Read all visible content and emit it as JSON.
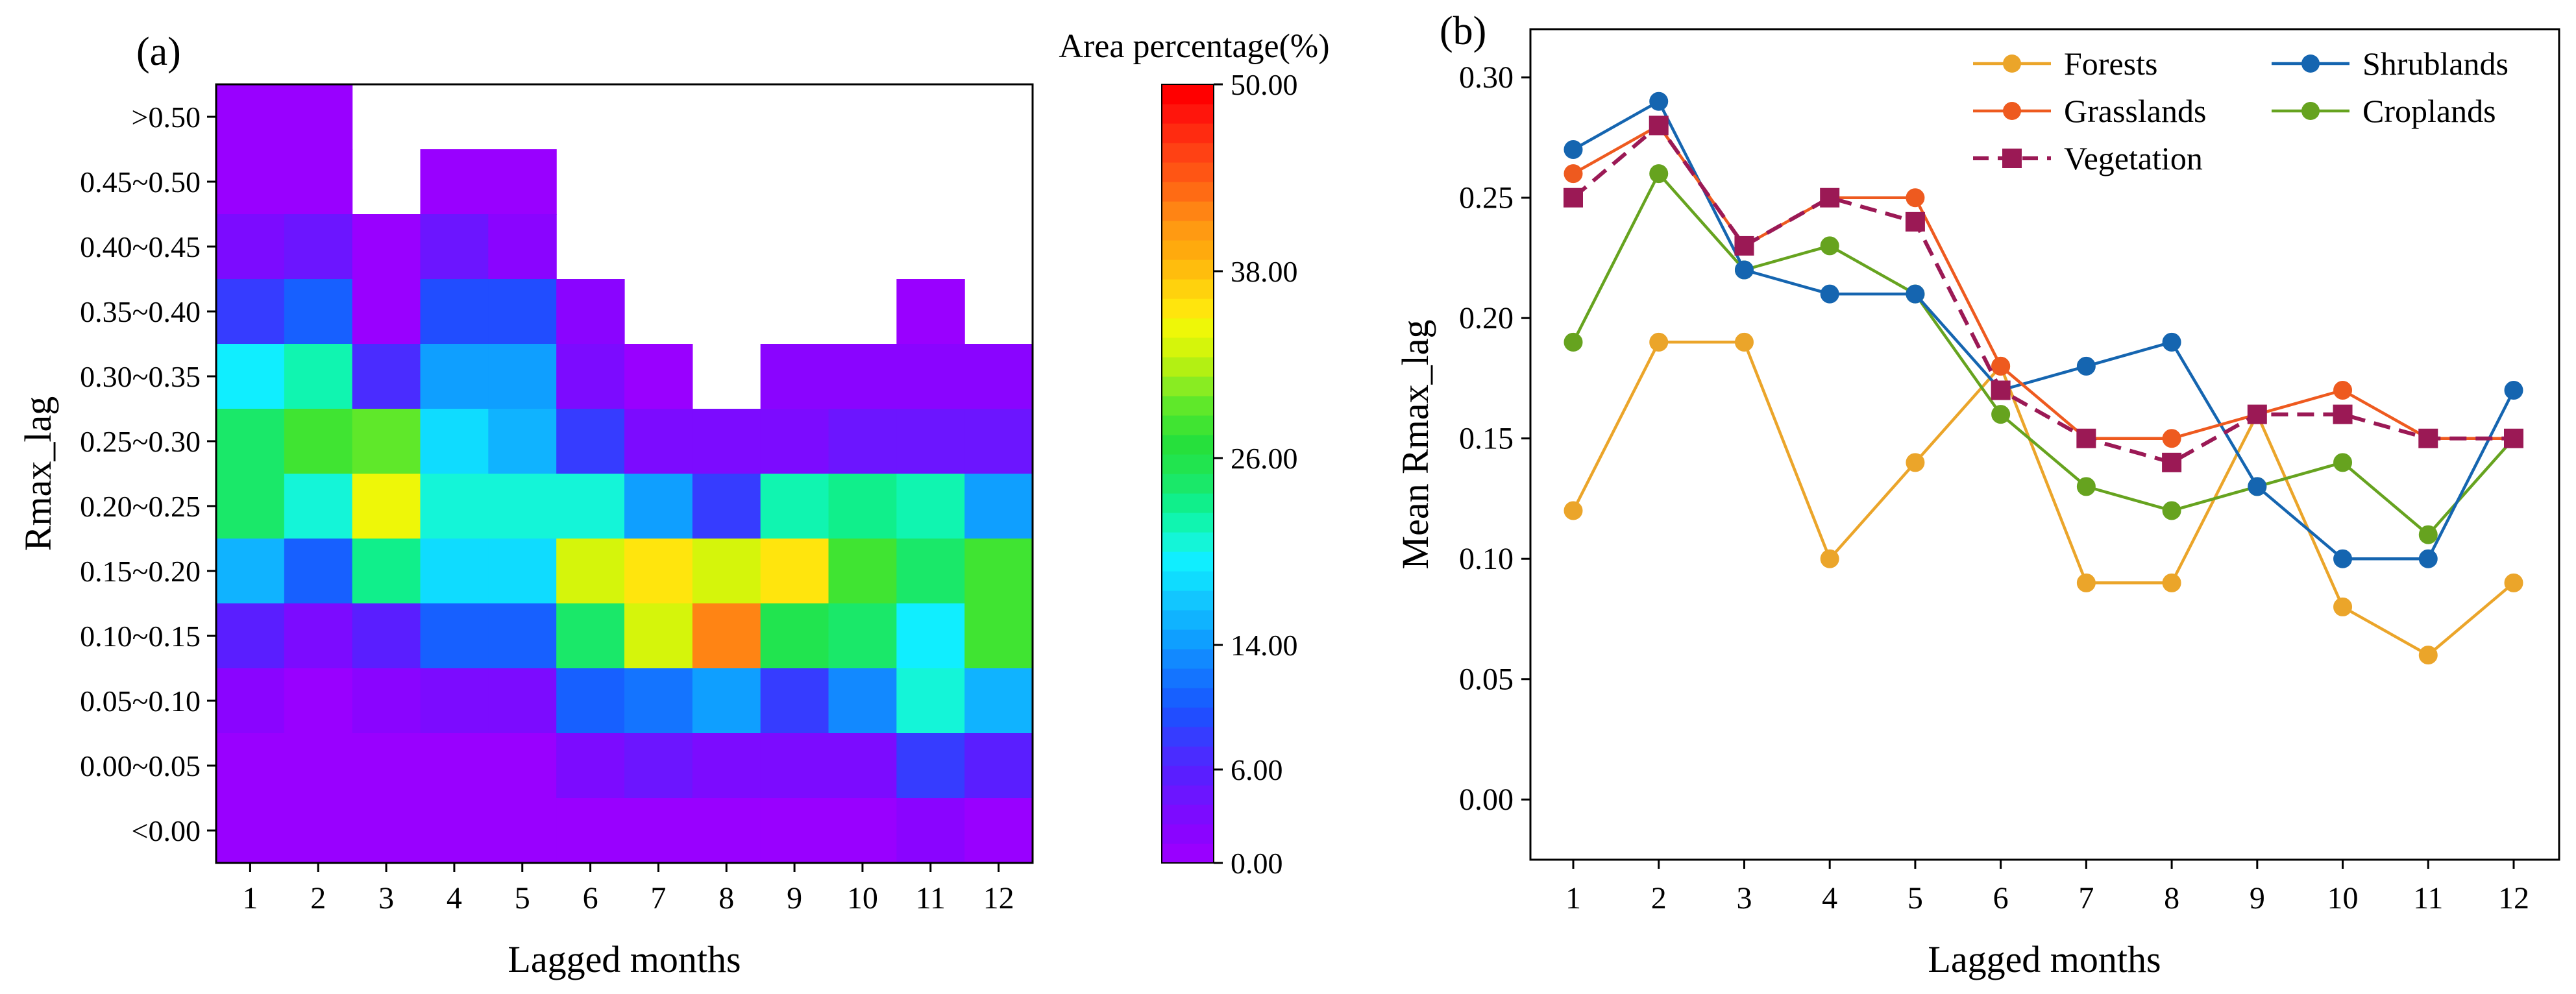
{
  "chart_data": [
    {
      "type": "heatmap",
      "panel_label": "(a)",
      "xlabel": "Lagged months",
      "ylabel": "Rmax_lag",
      "x_categories": [
        "1",
        "2",
        "3",
        "4",
        "5",
        "6",
        "7",
        "8",
        "9",
        "10",
        "11",
        "12"
      ],
      "y_categories": [
        ">0.50",
        "0.45~0.50",
        "0.40~0.45",
        "0.35~0.40",
        "0.30~0.35",
        "0.25~0.30",
        "0.20~0.25",
        "0.15~0.20",
        "0.10~0.15",
        "0.05~0.10",
        "0.00~0.05",
        "<0.00"
      ],
      "values_note": "Area percentage (%) per cell; null = no data (white). Rows follow y_categories order (top to bottom), columns follow x_categories.",
      "values": [
        [
          0.5,
          0.5,
          null,
          null,
          null,
          null,
          null,
          null,
          null,
          null,
          null,
          null
        ],
        [
          0.5,
          0.5,
          null,
          0.5,
          0.5,
          null,
          null,
          null,
          null,
          null,
          null,
          null
        ],
        [
          2.5,
          4.5,
          1.0,
          4.0,
          2.0,
          null,
          null,
          null,
          null,
          null,
          null,
          null
        ],
        [
          8.5,
          11.0,
          1.0,
          9.0,
          9.0,
          1.5,
          null,
          null,
          null,
          null,
          0.5,
          null
        ],
        [
          19.0,
          22.0,
          7.0,
          14.0,
          14.0,
          2.5,
          1.0,
          null,
          1.5,
          1.5,
          1.5,
          1.5
        ],
        [
          24.0,
          27.5,
          29.0,
          18.5,
          16.0,
          7.5,
          2.5,
          2.5,
          3.5,
          4.0,
          4.0,
          4.0
        ],
        [
          24.0,
          20.0,
          34.0,
          21.0,
          21.0,
          21.0,
          14.0,
          8.0,
          21.5,
          23.5,
          21.5,
          14.5
        ],
        [
          16.0,
          11.0,
          22.5,
          18.0,
          18.0,
          33.0,
          35.5,
          33.5,
          35.5,
          28.0,
          24.5,
          28.0
        ],
        [
          6.0,
          3.5,
          5.0,
          11.0,
          11.0,
          24.5,
          33.0,
          42.0,
          25.0,
          24.5,
          19.0,
          28.0
        ],
        [
          2.0,
          1.0,
          1.5,
          3.0,
          3.5,
          10.0,
          11.5,
          14.5,
          8.5,
          12.5,
          21.0,
          16.0
        ],
        [
          0.5,
          0.5,
          0.5,
          0.5,
          0.5,
          2.5,
          4.5,
          3.5,
          3.5,
          3.5,
          8.5,
          5.5
        ],
        [
          0.5,
          0.5,
          0.5,
          0.5,
          0.5,
          0.5,
          0.5,
          0.5,
          0.5,
          0.5,
          1.5,
          1.0
        ]
      ],
      "colorbar": {
        "title": "Area percentage(%)",
        "min": 0,
        "max": 50,
        "ticks": [
          "0.00",
          "6.00",
          "14.00",
          "26.00",
          "38.00",
          "50.00"
        ],
        "tick_values": [
          0,
          6,
          14,
          26,
          38,
          50
        ],
        "colors": [
          "#9900ff",
          "#8a04ff",
          "#7c0bff",
          "#6c15ff",
          "#5a1eff",
          "#4a2cff",
          "#363cff",
          "#214dff",
          "#1760ff",
          "#1474ff",
          "#1289ff",
          "#0f9fff",
          "#10b3ff",
          "#12c6ff",
          "#0fdcff",
          "#10eeff",
          "#14f5d8",
          "#10f5b0",
          "#10ef8b",
          "#1ae869",
          "#21e44f",
          "#26e03c",
          "#40e432",
          "#5fe82a",
          "#89ec22",
          "#b3f013",
          "#d5f50b",
          "#eef708",
          "#ffe50d",
          "#ffd20d",
          "#ffbd0d",
          "#ffaa0d",
          "#ff9a12",
          "#ff8414",
          "#ff6b14",
          "#ff5514",
          "#ff4114",
          "#ff2b10",
          "#ff150c",
          "#ff0000"
        ]
      }
    },
    {
      "type": "line",
      "panel_label": "(b)",
      "xlabel": "Lagged months",
      "ylabel": "Mean Rmax_lag",
      "x": [
        1,
        2,
        3,
        4,
        5,
        6,
        7,
        8,
        9,
        10,
        11,
        12
      ],
      "ylim": [
        -0.025,
        0.32
      ],
      "yticks": [
        "0.00",
        "0.05",
        "0.10",
        "0.15",
        "0.20",
        "0.25",
        "0.30"
      ],
      "ytick_values": [
        0,
        0.05,
        0.1,
        0.15,
        0.2,
        0.25,
        0.3
      ],
      "legend_position": "top-right",
      "series": [
        {
          "name": "Forests",
          "color": "#eba52a",
          "marker": "circle",
          "dashed": false,
          "values": [
            0.12,
            0.19,
            0.19,
            0.1,
            0.14,
            0.18,
            0.09,
            0.09,
            0.16,
            0.08,
            0.06,
            0.09
          ]
        },
        {
          "name": "Shrublands",
          "color": "#1565b0",
          "marker": "circle",
          "dashed": false,
          "values": [
            0.27,
            0.29,
            0.22,
            0.21,
            0.21,
            0.17,
            0.18,
            0.19,
            0.13,
            0.1,
            0.1,
            0.17
          ]
        },
        {
          "name": "Grasslands",
          "color": "#ee5a1f",
          "marker": "circle",
          "dashed": false,
          "values": [
            0.26,
            0.28,
            0.23,
            0.25,
            0.25,
            0.18,
            0.15,
            0.15,
            0.16,
            0.17,
            0.15,
            0.15
          ]
        },
        {
          "name": "Croplands",
          "color": "#66a31f",
          "marker": "circle",
          "dashed": false,
          "values": [
            0.19,
            0.26,
            0.22,
            0.23,
            0.21,
            0.16,
            0.13,
            0.12,
            0.13,
            0.14,
            0.11,
            0.15
          ]
        },
        {
          "name": "Vegetation",
          "color": "#9b1955",
          "marker": "square",
          "dashed": true,
          "values": [
            0.25,
            0.28,
            0.23,
            0.25,
            0.24,
            0.17,
            0.15,
            0.14,
            0.16,
            0.16,
            0.15,
            0.15
          ]
        }
      ]
    }
  ]
}
